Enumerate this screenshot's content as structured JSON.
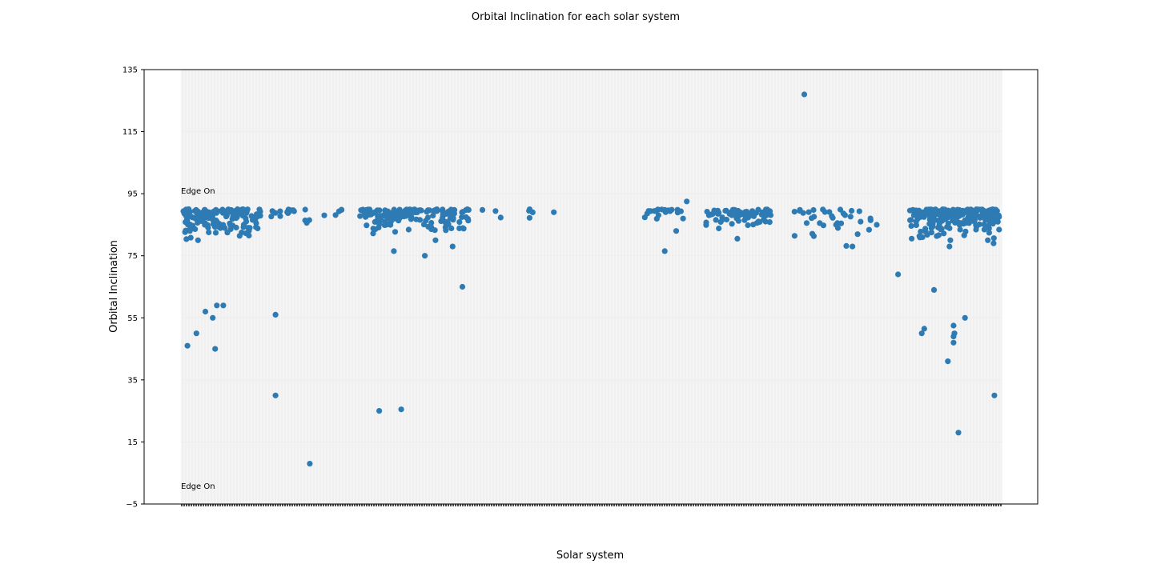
{
  "chart_data": {
    "type": "scatter",
    "title": "Orbital Inclination for each solar system",
    "xlabel": "Solar system",
    "ylabel": "Orbital Inclination",
    "ylim": [
      -5,
      135
    ],
    "yticks": [
      "−5",
      "15",
      "35",
      "55",
      "75",
      "95",
      "115",
      "135"
    ],
    "ytick_values": [
      -5,
      15,
      35,
      55,
      75,
      95,
      115,
      135
    ],
    "x_tick_labels_visible": false,
    "xlim": [
      0,
      1000
    ],
    "grid": false,
    "point_color": "#2e7bb4",
    "annotations": [
      {
        "text": "Edge On",
        "x": 0,
        "y": 95
      },
      {
        "text": "Edge On",
        "x": 0,
        "y": 0
      }
    ],
    "clusters": [
      {
        "x0": 0,
        "x1": 95,
        "y_min": 79,
        "y_max": 90,
        "n": 150,
        "seed": 11
      },
      {
        "x0": 105,
        "x1": 200,
        "y_min": 84,
        "y_max": 90,
        "n": 22,
        "seed": 23
      },
      {
        "x0": 215,
        "x1": 350,
        "y_min": 81,
        "y_max": 90,
        "n": 150,
        "seed": 37
      },
      {
        "x0": 365,
        "x1": 460,
        "y_min": 87,
        "y_max": 90,
        "n": 8,
        "seed": 41
      },
      {
        "x0": 565,
        "x1": 630,
        "y_min": 84,
        "y_max": 90,
        "n": 22,
        "seed": 53
      },
      {
        "x0": 640,
        "x1": 720,
        "y_min": 83,
        "y_max": 90,
        "n": 70,
        "seed": 61
      },
      {
        "x0": 745,
        "x1": 850,
        "y_min": 78,
        "y_max": 90,
        "n": 35,
        "seed": 73
      },
      {
        "x0": 890,
        "x1": 1000,
        "y_min": 79,
        "y_max": 90,
        "n": 220,
        "seed": 89
      }
    ],
    "points": [
      {
        "x": 5,
        "y": 46
      },
      {
        "x": 16,
        "y": 50
      },
      {
        "x": 27,
        "y": 57
      },
      {
        "x": 36,
        "y": 55
      },
      {
        "x": 39,
        "y": 45
      },
      {
        "x": 41,
        "y": 59
      },
      {
        "x": 49,
        "y": 59
      },
      {
        "x": 8,
        "y": 83
      },
      {
        "x": 18,
        "y": 80
      },
      {
        "x": 113,
        "y": 56
      },
      {
        "x": 113,
        "y": 30
      },
      {
        "x": 155,
        "y": 8
      },
      {
        "x": 240,
        "y": 25
      },
      {
        "x": 267,
        "y": 25.5
      },
      {
        "x": 258,
        "y": 76.5
      },
      {
        "x": 296,
        "y": 75
      },
      {
        "x": 309,
        "y": 80
      },
      {
        "x": 330,
        "y": 78
      },
      {
        "x": 342,
        "y": 65
      },
      {
        "x": 590,
        "y": 76.5
      },
      {
        "x": 604,
        "y": 83
      },
      {
        "x": 617,
        "y": 92.5
      },
      {
        "x": 679,
        "y": 80.5
      },
      {
        "x": 761,
        "y": 127
      },
      {
        "x": 800,
        "y": 85
      },
      {
        "x": 820,
        "y": 78
      },
      {
        "x": 876,
        "y": 69
      },
      {
        "x": 905,
        "y": 50
      },
      {
        "x": 908,
        "y": 51.5
      },
      {
        "x": 904,
        "y": 88
      },
      {
        "x": 906,
        "y": 89
      },
      {
        "x": 920,
        "y": 64
      },
      {
        "x": 917,
        "y": 82.5
      },
      {
        "x": 918,
        "y": 85
      },
      {
        "x": 918,
        "y": 89
      },
      {
        "x": 917,
        "y": 87.5
      },
      {
        "x": 916,
        "y": 86.5
      },
      {
        "x": 914,
        "y": 88
      },
      {
        "x": 937,
        "y": 41
      },
      {
        "x": 939,
        "y": 78
      },
      {
        "x": 940,
        "y": 80
      },
      {
        "x": 944,
        "y": 52.5
      },
      {
        "x": 944,
        "y": 49
      },
      {
        "x": 945,
        "y": 50
      },
      {
        "x": 944,
        "y": 47
      },
      {
        "x": 950,
        "y": 18
      },
      {
        "x": 958,
        "y": 55
      },
      {
        "x": 994,
        "y": 30
      },
      {
        "x": 993,
        "y": 79
      },
      {
        "x": 986,
        "y": 80
      }
    ]
  }
}
